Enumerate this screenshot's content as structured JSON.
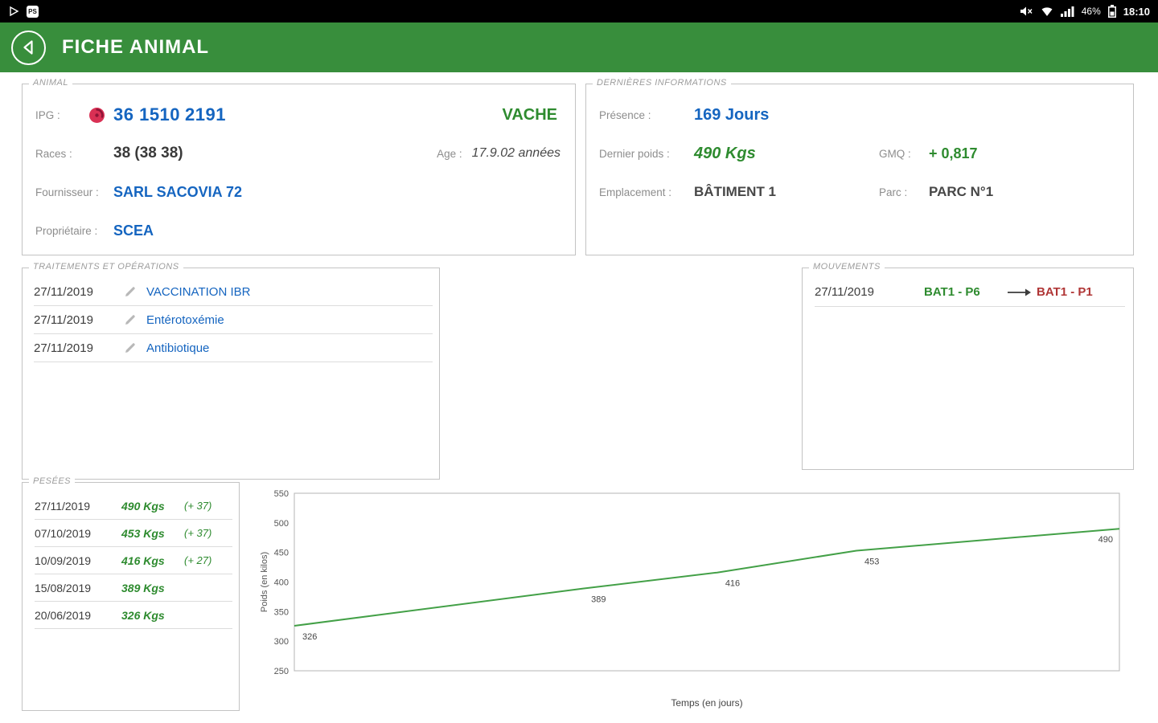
{
  "status_bar": {
    "badge": "PS",
    "battery": "46%",
    "time": "18:10"
  },
  "header": {
    "title": "FICHE ANIMAL"
  },
  "colors": {
    "header_green": "#388e3c",
    "accent_blue": "#1565c0",
    "accent_green": "#2e8b2f",
    "accent_red": "#b03636",
    "tag_red": "#d93054",
    "chart_line": "#43a047"
  },
  "icons": {
    "back": "chevron-left-circle",
    "ear_tag": "red-ear-tag",
    "edit": "pencil",
    "movement": "arrow-right"
  },
  "animal": {
    "legend": "ANIMAL",
    "ipg_label": "IPG :",
    "ipg_prefix": "36 1510",
    "ipg_suffix": "2191",
    "type": "VACHE",
    "races_label": "Races :",
    "races": "38 (38 38)",
    "age_label": "Age :",
    "age": "17.9.02 années",
    "fournisseur_label": "Fournisseur :",
    "fournisseur": "SARL SACOVIA 72",
    "proprietaire_label": "Propriétaire :",
    "proprietaire": "SCEA"
  },
  "infos": {
    "legend": "DERNIÈRES INFORMATIONS",
    "presence_label": "Présence :",
    "presence": "169 Jours",
    "poids_label": "Dernier poids :",
    "poids": "490 Kgs",
    "gmq_label": "GMQ :",
    "gmq": "+ 0,817",
    "emplacement_label": "Emplacement :",
    "emplacement": "BÂTIMENT 1",
    "parc_label": "Parc :",
    "parc": "PARC N°1"
  },
  "traitements": {
    "legend": "TRAITEMENTS ET OPÉRATIONS",
    "rows": [
      {
        "date": "27/11/2019",
        "label": "VACCINATION IBR"
      },
      {
        "date": "27/11/2019",
        "label": "Entérotoxémie"
      },
      {
        "date": "27/11/2019",
        "label": "Antibiotique"
      }
    ]
  },
  "mouvements": {
    "legend": "MOUVEMENTS",
    "rows": [
      {
        "date": "27/11/2019",
        "from": "BAT1 - P6",
        "to": "BAT1 - P1"
      }
    ]
  },
  "pesees": {
    "legend": "PESÉES",
    "rows": [
      {
        "date": "27/11/2019",
        "poids": "490 Kgs",
        "delta": "(+ 37)"
      },
      {
        "date": "07/10/2019",
        "poids": "453 Kgs",
        "delta": "(+ 37)"
      },
      {
        "date": "10/09/2019",
        "poids": "416 Kgs",
        "delta": "(+ 27)"
      },
      {
        "date": "15/08/2019",
        "poids": "389 Kgs",
        "delta": ""
      },
      {
        "date": "20/06/2019",
        "poids": "326 Kgs",
        "delta": ""
      }
    ]
  },
  "chart_data": {
    "type": "line",
    "x": [
      0,
      56,
      82,
      109,
      160
    ],
    "values": [
      326,
      389,
      416,
      453,
      490
    ],
    "point_dates": [
      "20/06/2019",
      "15/08/2019",
      "10/09/2019",
      "07/10/2019",
      "27/11/2019"
    ],
    "title": "",
    "xlabel": "Temps (en jours)",
    "ylabel": "Poids (en kilos)",
    "ylim": [
      250,
      550
    ],
    "ytick_step": 50,
    "grid": false,
    "legend": "none",
    "line_color": "#43a047"
  }
}
